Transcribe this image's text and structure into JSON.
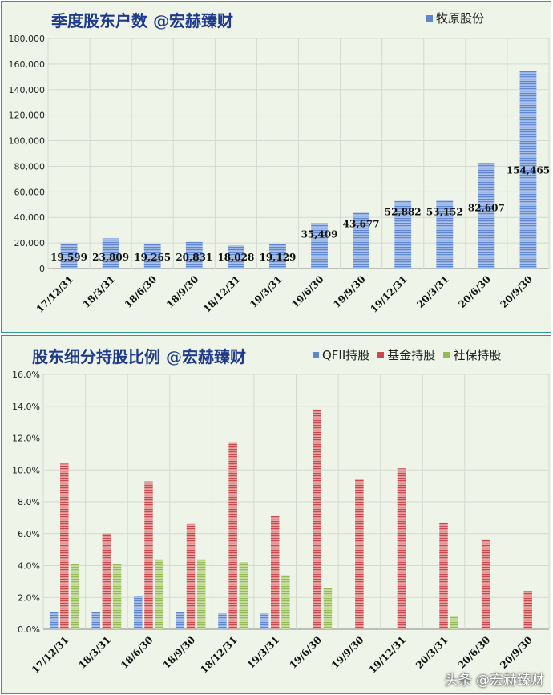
{
  "colors": {
    "blue_fill": "#a9c1ea",
    "blue_line": "#5d86cf",
    "red_fill": "#e8a3a3",
    "red_line": "#c9484d",
    "green_fill": "#c9dea4",
    "green_line": "#93bc55",
    "title": "#1f3a8c"
  },
  "watermark": "头条 @宏赫臻财",
  "chart_data": [
    {
      "type": "bar",
      "title": "季度股东户数 @宏赫臻财",
      "categories": [
        "17/12/31",
        "18/3/31",
        "18/6/30",
        "18/9/30",
        "18/12/31",
        "19/3/31",
        "19/6/30",
        "19/9/30",
        "19/12/31",
        "20/3/31",
        "20/6/30",
        "20/9/30"
      ],
      "series": [
        {
          "name": "牧原股份",
          "values": [
            19599,
            23809,
            19265,
            20831,
            18028,
            19129,
            35409,
            43677,
            52882,
            53152,
            82607,
            154465
          ]
        }
      ],
      "data_labels": [
        "19,599",
        "23,809",
        "19,265",
        "20,831",
        "18,028",
        "19,129",
        "35,409",
        "43,677",
        "52,882",
        "53,152",
        "82,607",
        "154,465"
      ],
      "y_ticks": [
        "0",
        "20,000",
        "40,000",
        "60,000",
        "80,000",
        "100,000",
        "120,000",
        "140,000",
        "160,000",
        "180,000"
      ],
      "ylim": [
        0,
        180000
      ],
      "grid": true,
      "legend_position": "top-right"
    },
    {
      "type": "bar",
      "title": "股东细分持股比例 @宏赫臻财",
      "categories": [
        "17/12/31",
        "18/3/31",
        "18/6/30",
        "18/9/30",
        "18/12/31",
        "19/3/31",
        "19/6/30",
        "19/9/30",
        "19/12/31",
        "20/3/31",
        "20/6/30",
        "20/9/30"
      ],
      "series": [
        {
          "name": "QFII持股",
          "values": [
            1.1,
            1.1,
            2.1,
            1.1,
            1.0,
            1.0,
            null,
            null,
            null,
            null,
            null,
            null
          ]
        },
        {
          "name": "基金持股",
          "values": [
            10.4,
            6.0,
            9.3,
            6.6,
            11.7,
            7.1,
            13.8,
            9.4,
            10.1,
            6.7,
            5.6,
            2.4
          ]
        },
        {
          "name": "社保持股",
          "values": [
            4.1,
            4.1,
            4.4,
            4.4,
            4.2,
            3.4,
            2.6,
            null,
            null,
            0.8,
            null,
            null
          ]
        }
      ],
      "y_ticks": [
        "0.0%",
        "2.0%",
        "4.0%",
        "6.0%",
        "8.0%",
        "10.0%",
        "12.0%",
        "14.0%",
        "16.0%"
      ],
      "ylim": [
        0,
        16
      ],
      "grid": true,
      "legend_position": "top-right"
    }
  ]
}
